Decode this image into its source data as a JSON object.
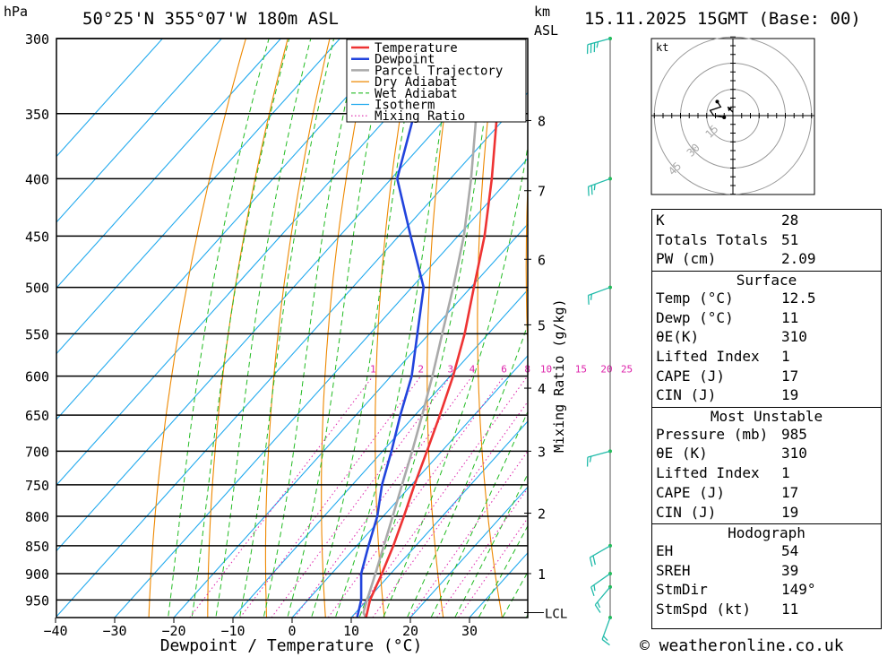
{
  "header": {
    "location": "50°25'N  355°07'W  180m  ASL",
    "datetime": "15.11.2025  15GMT  (Base: 00)",
    "pressure_unit": "hPa",
    "height_unit_top": "km",
    "height_unit_bottom": "ASL"
  },
  "legend": {
    "items": [
      {
        "label": "Temperature",
        "color": "#ee3333",
        "style": "solid"
      },
      {
        "label": "Dewpoint",
        "color": "#2244dd",
        "style": "solid"
      },
      {
        "label": "Parcel Trajectory",
        "color": "#aaaaaa",
        "style": "solid"
      },
      {
        "label": "Dry Adiabat",
        "color": "#ee8800",
        "style": "solid"
      },
      {
        "label": "Wet Adiabat",
        "color": "#22bb22",
        "style": "dashed"
      },
      {
        "label": "Isotherm",
        "color": "#22aaee",
        "style": "solid"
      },
      {
        "label": "Mixing Ratio",
        "color": "#dd22aa",
        "style": "dotted"
      }
    ]
  },
  "chart_data": {
    "type": "skew-t",
    "xlabel": "Dewpoint / Temperature (°C)",
    "ylabel": "hPa",
    "mixing_ratio_label": "Mixing Ratio (g/kg)",
    "x_ticks": [
      -40,
      -30,
      -20,
      -10,
      0,
      10,
      20,
      30
    ],
    "x_tick_labels": [
      "−40",
      "−30",
      "−20",
      "−10",
      "0",
      "10",
      "20",
      "30"
    ],
    "pressure_levels": [
      300,
      350,
      400,
      450,
      500,
      550,
      600,
      650,
      700,
      750,
      800,
      850,
      900,
      950
    ],
    "pressure_labels": [
      "300",
      "350",
      "400",
      "450",
      "500",
      "550",
      "600",
      "650",
      "700",
      "750",
      "800",
      "850",
      "900",
      "950"
    ],
    "pressure_range": [
      300,
      985
    ],
    "km_ticks": [
      {
        "km": 1,
        "p": 900
      },
      {
        "km": 2,
        "p": 795
      },
      {
        "km": 3,
        "p": 700
      },
      {
        "km": 4,
        "p": 615
      },
      {
        "km": 5,
        "p": 540
      },
      {
        "km": 6,
        "p": 472
      },
      {
        "km": 7,
        "p": 410
      },
      {
        "km": 8,
        "p": 355
      }
    ],
    "lcl_label": "LCL",
    "lcl_pressure": 975,
    "mixing_ratio_values": [
      1,
      2,
      3,
      4,
      6,
      8,
      10,
      15,
      20,
      25
    ],
    "mixing_ratio_labels": [
      "1",
      "2",
      "3",
      "4",
      "6",
      "8",
      "10",
      "15",
      "20",
      "25"
    ],
    "series": [
      {
        "name": "Temperature",
        "color": "#ee3333",
        "points": [
          {
            "p": 985,
            "t": 12.5
          },
          {
            "p": 950,
            "t": 10.5
          },
          {
            "p": 900,
            "t": 8.5
          },
          {
            "p": 850,
            "t": 6.2
          },
          {
            "p": 800,
            "t": 3.5
          },
          {
            "p": 750,
            "t": 0.5
          },
          {
            "p": 700,
            "t": -2.5
          },
          {
            "p": 650,
            "t": -5.8
          },
          {
            "p": 600,
            "t": -9.5
          },
          {
            "p": 550,
            "t": -14.0
          },
          {
            "p": 500,
            "t": -19.5
          },
          {
            "p": 450,
            "t": -25.5
          },
          {
            "p": 400,
            "t": -33.0
          },
          {
            "p": 350,
            "t": -42.0
          },
          {
            "p": 300,
            "t": -51.5
          }
        ]
      },
      {
        "name": "Dewpoint",
        "color": "#2244dd",
        "points": [
          {
            "p": 985,
            "t": 11.0
          },
          {
            "p": 950,
            "t": 9.0
          },
          {
            "p": 900,
            "t": 5.0
          },
          {
            "p": 850,
            "t": 2.0
          },
          {
            "p": 800,
            "t": -1.0
          },
          {
            "p": 750,
            "t": -5.0
          },
          {
            "p": 700,
            "t": -8.5
          },
          {
            "p": 650,
            "t": -12.5
          },
          {
            "p": 600,
            "t": -16.5
          },
          {
            "p": 550,
            "t": -22.0
          },
          {
            "p": 500,
            "t": -28.0
          },
          {
            "p": 450,
            "t": -38.0
          },
          {
            "p": 400,
            "t": -49.0
          },
          {
            "p": 350,
            "t": -56.0
          },
          {
            "p": 300,
            "t": -64.0
          }
        ]
      },
      {
        "name": "Parcel Trajectory",
        "color": "#aaaaaa",
        "points": [
          {
            "p": 985,
            "t": 12.5
          },
          {
            "p": 975,
            "t": 11.3
          },
          {
            "p": 950,
            "t": 10.0
          },
          {
            "p": 900,
            "t": 7.4
          },
          {
            "p": 850,
            "t": 4.6
          },
          {
            "p": 800,
            "t": 1.6
          },
          {
            "p": 750,
            "t": -1.6
          },
          {
            "p": 700,
            "t": -5.0
          },
          {
            "p": 650,
            "t": -8.8
          },
          {
            "p": 600,
            "t": -13.0
          },
          {
            "p": 550,
            "t": -17.8
          },
          {
            "p": 500,
            "t": -23.0
          },
          {
            "p": 450,
            "t": -29.0
          },
          {
            "p": 400,
            "t": -36.5
          },
          {
            "p": 350,
            "t": -45.5
          },
          {
            "p": 300,
            "t": -55.5
          }
        ]
      }
    ],
    "wind_barbs": [
      {
        "p": 300,
        "dir": 255,
        "spd_kt": 35
      },
      {
        "p": 400,
        "dir": 250,
        "spd_kt": 25
      },
      {
        "p": 500,
        "dir": 250,
        "spd_kt": 15
      },
      {
        "p": 700,
        "dir": 255,
        "spd_kt": 15
      },
      {
        "p": 850,
        "dir": 240,
        "spd_kt": 20
      },
      {
        "p": 900,
        "dir": 235,
        "spd_kt": 15
      },
      {
        "p": 925,
        "dir": 220,
        "spd_kt": 15
      },
      {
        "p": 985,
        "dir": 200,
        "spd_kt": 15
      }
    ],
    "hodograph": {
      "unit": "kt",
      "rings_kt": [
        15,
        30,
        45
      ],
      "ring_labels": [
        "15",
        "30",
        "45"
      ],
      "points": [
        {
          "u": -5,
          "v": -1
        },
        {
          "u": -11,
          "v": 0
        },
        {
          "u": -13,
          "v": 3
        },
        {
          "u": -7,
          "v": 5
        },
        {
          "u": -9,
          "v": 8
        }
      ],
      "storm_motion": {
        "u": -3,
        "v": 5
      }
    }
  },
  "stats": {
    "indices": [
      {
        "label": "K",
        "value": "28"
      },
      {
        "label": "Totals Totals",
        "value": "51"
      },
      {
        "label": "PW (cm)",
        "value": "2.09"
      }
    ],
    "surface": {
      "title": "Surface",
      "rows": [
        {
          "label": "Temp (°C)",
          "value": "12.5"
        },
        {
          "label": "Dewp (°C)",
          "value": "11"
        },
        {
          "label": "θE(K)",
          "value": "310"
        },
        {
          "label": "Lifted Index",
          "value": "1"
        },
        {
          "label": "CAPE (J)",
          "value": "17"
        },
        {
          "label": "CIN (J)",
          "value": "19"
        }
      ]
    },
    "most_unstable": {
      "title": "Most Unstable",
      "rows": [
        {
          "label": "Pressure (mb)",
          "value": "985"
        },
        {
          "label": "θE (K)",
          "value": "310"
        },
        {
          "label": "Lifted Index",
          "value": "1"
        },
        {
          "label": "CAPE (J)",
          "value": "17"
        },
        {
          "label": "CIN (J)",
          "value": "19"
        }
      ]
    },
    "hodograph": {
      "title": "Hodograph",
      "rows": [
        {
          "label": "EH",
          "value": "54"
        },
        {
          "label": "SREH",
          "value": "39"
        },
        {
          "label": "StmDir",
          "value": "149°"
        },
        {
          "label": "StmSpd (kt)",
          "value": "11"
        }
      ]
    }
  },
  "footer": {
    "copyright": "© weatheronline.co.uk"
  }
}
